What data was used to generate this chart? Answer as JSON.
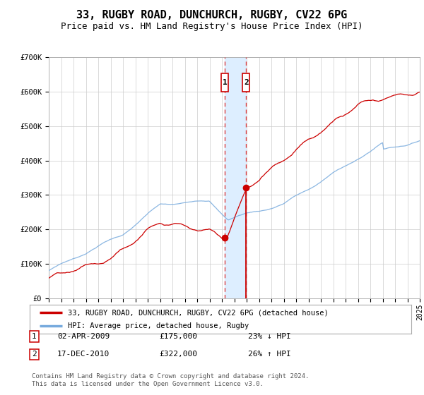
{
  "title": "33, RUGBY ROAD, DUNCHURCH, RUGBY, CV22 6PG",
  "subtitle": "Price paid vs. HM Land Registry's House Price Index (HPI)",
  "x_start_year": 1995,
  "x_end_year": 2025,
  "y_min": 0,
  "y_max": 700000,
  "y_ticks": [
    0,
    100000,
    200000,
    300000,
    400000,
    500000,
    600000,
    700000
  ],
  "y_tick_labels": [
    "£0",
    "£100K",
    "£200K",
    "£300K",
    "£400K",
    "£500K",
    "£600K",
    "£700K"
  ],
  "sale1_date": 2009.25,
  "sale1_price": 175000,
  "sale1_label": "1",
  "sale1_text": "02-APR-2009",
  "sale1_price_text": "£175,000",
  "sale1_pct": "23% ↓ HPI",
  "sale2_date": 2010.96,
  "sale2_price": 322000,
  "sale2_label": "2",
  "sale2_text": "17-DEC-2010",
  "sale2_price_text": "£322,000",
  "sale2_pct": "26% ↑ HPI",
  "red_line_color": "#cc0000",
  "blue_line_color": "#77aadd",
  "highlight_color": "#ddeeff",
  "dashed_line_color": "#dd4444",
  "dot_color": "#cc0000",
  "grid_color": "#cccccc",
  "background_color": "#ffffff",
  "legend_label_red": "33, RUGBY ROAD, DUNCHURCH, RUGBY, CV22 6PG (detached house)",
  "legend_label_blue": "HPI: Average price, detached house, Rugby",
  "footer": "Contains HM Land Registry data © Crown copyright and database right 2024.\nThis data is licensed under the Open Government Licence v3.0.",
  "title_fontsize": 11,
  "subtitle_fontsize": 9,
  "tick_fontsize": 7.5
}
